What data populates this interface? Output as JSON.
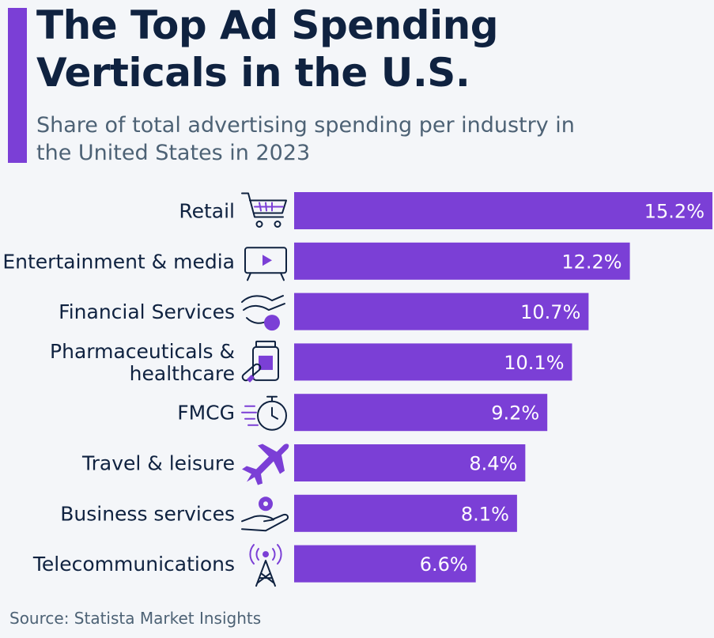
{
  "header": {
    "title_line1": "The Top Ad Spending",
    "title_line2": "Verticals in the U.S.",
    "subtitle": "Share of total advertising spending per industry in the United States in 2023"
  },
  "footer": {
    "source": "Source: Statista Market Insights"
  },
  "colors": {
    "bar": "#7b3fd6",
    "title": "#0f2240",
    "background": "#f4f6f9"
  },
  "chart_data": {
    "type": "bar",
    "orientation": "horizontal",
    "title": "The Top Ad Spending Verticals in the U.S.",
    "subtitle": "Share of total advertising spending per industry in the United States in 2023",
    "categories": [
      "Retail",
      "Entertainment & media",
      "Financial Services",
      "Pharmaceuticals & healthcare",
      "FMCG",
      "Travel & leisure",
      "Business services",
      "Telecommunications"
    ],
    "category_lines": [
      [
        "Retail"
      ],
      [
        "Entertainment & media"
      ],
      [
        "Financial Services"
      ],
      [
        "Pharmaceuticals &",
        "healthcare"
      ],
      [
        "FMCG"
      ],
      [
        "Travel & leisure"
      ],
      [
        "Business services"
      ],
      [
        "Telecommunications"
      ]
    ],
    "icons": [
      "shopping-cart-icon",
      "tv-icon",
      "hand-coin-icon",
      "medicine-icon",
      "stopwatch-icon",
      "airplane-icon",
      "hand-gear-icon",
      "antenna-icon"
    ],
    "values": [
      15.2,
      12.2,
      10.7,
      10.1,
      9.2,
      8.4,
      8.1,
      6.6
    ],
    "value_labels": [
      "15.2%",
      "12.2%",
      "10.7%",
      "10.1%",
      "9.2%",
      "8.4%",
      "8.1%",
      "6.6%"
    ],
    "unit": "%",
    "xlim": [
      0,
      15.2
    ],
    "grid": false,
    "legend": "none"
  }
}
